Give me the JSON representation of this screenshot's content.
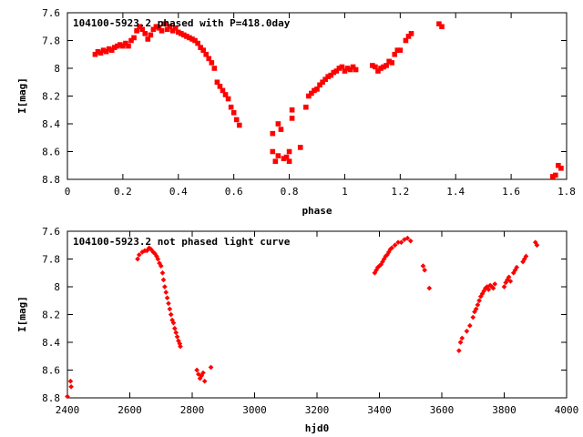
{
  "chart_data": [
    {
      "type": "scatter",
      "title": "104100-5923.2 phased with P=418.0day",
      "xlabel": "phase",
      "ylabel": "I[mag]",
      "xlim": [
        0,
        1.8
      ],
      "ylim": [
        8.8,
        7.6
      ],
      "y_inverted": true,
      "xticks": [
        "0",
        "0.2",
        "0.4",
        "0.6",
        "0.8",
        "1",
        "1.2",
        "1.4",
        "1.6",
        "1.8"
      ],
      "yticks": [
        "7.6",
        "7.8",
        "8",
        "8.2",
        "8.4",
        "8.6",
        "8.8"
      ],
      "marker_color": "#ff0000",
      "points": [
        [
          0.1,
          7.9
        ],
        [
          0.11,
          7.88
        ],
        [
          0.12,
          7.89
        ],
        [
          0.13,
          7.87
        ],
        [
          0.14,
          7.88
        ],
        [
          0.15,
          7.86
        ],
        [
          0.16,
          7.87
        ],
        [
          0.17,
          7.85
        ],
        [
          0.18,
          7.84
        ],
        [
          0.19,
          7.83
        ],
        [
          0.2,
          7.84
        ],
        [
          0.21,
          7.82
        ],
        [
          0.22,
          7.84
        ],
        [
          0.23,
          7.8
        ],
        [
          0.24,
          7.78
        ],
        [
          0.25,
          7.73
        ],
        [
          0.26,
          7.7
        ],
        [
          0.27,
          7.72
        ],
        [
          0.28,
          7.75
        ],
        [
          0.29,
          7.79
        ],
        [
          0.3,
          7.76
        ],
        [
          0.31,
          7.72
        ],
        [
          0.32,
          7.7
        ],
        [
          0.33,
          7.71
        ],
        [
          0.34,
          7.73
        ],
        [
          0.35,
          7.68
        ],
        [
          0.36,
          7.72
        ],
        [
          0.37,
          7.7
        ],
        [
          0.38,
          7.73
        ],
        [
          0.39,
          7.71
        ],
        [
          0.4,
          7.74
        ],
        [
          0.41,
          7.75
        ],
        [
          0.42,
          7.76
        ],
        [
          0.43,
          7.77
        ],
        [
          0.44,
          7.78
        ],
        [
          0.45,
          7.79
        ],
        [
          0.46,
          7.8
        ],
        [
          0.47,
          7.82
        ],
        [
          0.48,
          7.85
        ],
        [
          0.49,
          7.87
        ],
        [
          0.5,
          7.9
        ],
        [
          0.51,
          7.93
        ],
        [
          0.52,
          7.96
        ],
        [
          0.53,
          8.0
        ],
        [
          0.54,
          8.1
        ],
        [
          0.55,
          8.13
        ],
        [
          0.56,
          8.16
        ],
        [
          0.57,
          8.19
        ],
        [
          0.58,
          8.22
        ],
        [
          0.59,
          8.28
        ],
        [
          0.6,
          8.32
        ],
        [
          0.61,
          8.37
        ],
        [
          0.62,
          8.41
        ],
        [
          0.74,
          8.47
        ],
        [
          0.74,
          8.6
        ],
        [
          0.75,
          8.67
        ],
        [
          0.76,
          8.4
        ],
        [
          0.76,
          8.63
        ],
        [
          0.77,
          8.44
        ],
        [
          0.78,
          8.65
        ],
        [
          0.79,
          8.64
        ],
        [
          0.8,
          8.67
        ],
        [
          0.8,
          8.6
        ],
        [
          0.81,
          8.36
        ],
        [
          0.81,
          8.3
        ],
        [
          0.84,
          8.57
        ],
        [
          0.86,
          8.28
        ],
        [
          0.87,
          8.2
        ],
        [
          0.88,
          8.18
        ],
        [
          0.89,
          8.16
        ],
        [
          0.9,
          8.15
        ],
        [
          0.91,
          8.12
        ],
        [
          0.92,
          8.1
        ],
        [
          0.93,
          8.08
        ],
        [
          0.94,
          8.06
        ],
        [
          0.95,
          8.05
        ],
        [
          0.96,
          8.03
        ],
        [
          0.97,
          8.02
        ],
        [
          0.98,
          8.0
        ],
        [
          0.99,
          7.99
        ],
        [
          1.0,
          8.02
        ],
        [
          1.01,
          8.0
        ],
        [
          1.02,
          8.01
        ],
        [
          1.03,
          7.99
        ],
        [
          1.04,
          8.01
        ],
        [
          1.1,
          7.98
        ],
        [
          1.11,
          7.99
        ],
        [
          1.12,
          8.02
        ],
        [
          1.13,
          8.0
        ],
        [
          1.14,
          7.99
        ],
        [
          1.15,
          7.98
        ],
        [
          1.16,
          7.95
        ],
        [
          1.17,
          7.96
        ],
        [
          1.18,
          7.9
        ],
        [
          1.19,
          7.87
        ],
        [
          1.2,
          7.87
        ],
        [
          1.22,
          7.8
        ],
        [
          1.23,
          7.77
        ],
        [
          1.24,
          7.75
        ],
        [
          1.34,
          7.68
        ],
        [
          1.35,
          7.7
        ],
        [
          1.75,
          8.78
        ],
        [
          1.76,
          8.77
        ],
        [
          1.77,
          8.7
        ],
        [
          1.78,
          8.72
        ]
      ]
    },
    {
      "type": "scatter",
      "title": "104100-5923.2 not phased light curve",
      "xlabel": "hjd0",
      "ylabel": "I[mag]",
      "xlim": [
        2400,
        4000
      ],
      "ylim": [
        8.8,
        7.6
      ],
      "y_inverted": true,
      "xticks": [
        "2400",
        "2600",
        "2800",
        "3000",
        "3200",
        "3400",
        "3600",
        "3800",
        "4000"
      ],
      "yticks": [
        "7.6",
        "7.8",
        "8",
        "8.2",
        "8.4",
        "8.6",
        "8.8"
      ],
      "marker_color": "#ff0000",
      "points": [
        [
          2400,
          8.79
        ],
        [
          2410,
          8.68
        ],
        [
          2412,
          8.72
        ],
        [
          2625,
          7.8
        ],
        [
          2630,
          7.77
        ],
        [
          2640,
          7.75
        ],
        [
          2648,
          7.74
        ],
        [
          2655,
          7.74
        ],
        [
          2662,
          7.72
        ],
        [
          2668,
          7.73
        ],
        [
          2675,
          7.75
        ],
        [
          2680,
          7.76
        ],
        [
          2686,
          7.78
        ],
        [
          2690,
          7.8
        ],
        [
          2695,
          7.83
        ],
        [
          2700,
          7.85
        ],
        [
          2705,
          7.9
        ],
        [
          2708,
          7.95
        ],
        [
          2712,
          8.0
        ],
        [
          2716,
          8.04
        ],
        [
          2720,
          8.08
        ],
        [
          2724,
          8.12
        ],
        [
          2728,
          8.16
        ],
        [
          2732,
          8.2
        ],
        [
          2736,
          8.24
        ],
        [
          2740,
          8.26
        ],
        [
          2744,
          8.3
        ],
        [
          2748,
          8.33
        ],
        [
          2752,
          8.36
        ],
        [
          2756,
          8.39
        ],
        [
          2760,
          8.41
        ],
        [
          2762,
          8.43
        ],
        [
          2815,
          8.6
        ],
        [
          2820,
          8.63
        ],
        [
          2825,
          8.66
        ],
        [
          2830,
          8.64
        ],
        [
          2835,
          8.62
        ],
        [
          2840,
          8.68
        ],
        [
          2860,
          8.58
        ],
        [
          3385,
          7.9
        ],
        [
          3390,
          7.88
        ],
        [
          3395,
          7.86
        ],
        [
          3400,
          7.85
        ],
        [
          3405,
          7.84
        ],
        [
          3410,
          7.82
        ],
        [
          3415,
          7.8
        ],
        [
          3420,
          7.78
        ],
        [
          3425,
          7.77
        ],
        [
          3430,
          7.75
        ],
        [
          3435,
          7.73
        ],
        [
          3440,
          7.72
        ],
        [
          3450,
          7.7
        ],
        [
          3460,
          7.68
        ],
        [
          3470,
          7.68
        ],
        [
          3480,
          7.66
        ],
        [
          3490,
          7.65
        ],
        [
          3500,
          7.67
        ],
        [
          3540,
          7.85
        ],
        [
          3545,
          7.88
        ],
        [
          3560,
          8.01
        ],
        [
          3655,
          8.46
        ],
        [
          3660,
          8.4
        ],
        [
          3665,
          8.37
        ],
        [
          3680,
          8.32
        ],
        [
          3690,
          8.28
        ],
        [
          3700,
          8.22
        ],
        [
          3705,
          8.18
        ],
        [
          3710,
          8.16
        ],
        [
          3715,
          8.13
        ],
        [
          3720,
          8.1
        ],
        [
          3725,
          8.07
        ],
        [
          3730,
          8.05
        ],
        [
          3735,
          8.03
        ],
        [
          3740,
          8.01
        ],
        [
          3745,
          8.0
        ],
        [
          3750,
          8.02
        ],
        [
          3755,
          7.99
        ],
        [
          3760,
          8.0
        ],
        [
          3765,
          8.01
        ],
        [
          3770,
          7.98
        ],
        [
          3800,
          8.0
        ],
        [
          3805,
          7.97
        ],
        [
          3810,
          7.95
        ],
        [
          3815,
          7.93
        ],
        [
          3820,
          7.96
        ],
        [
          3830,
          7.9
        ],
        [
          3835,
          7.88
        ],
        [
          3840,
          7.86
        ],
        [
          3860,
          7.82
        ],
        [
          3865,
          7.8
        ],
        [
          3870,
          7.78
        ],
        [
          3900,
          7.68
        ],
        [
          3905,
          7.7
        ]
      ]
    }
  ]
}
